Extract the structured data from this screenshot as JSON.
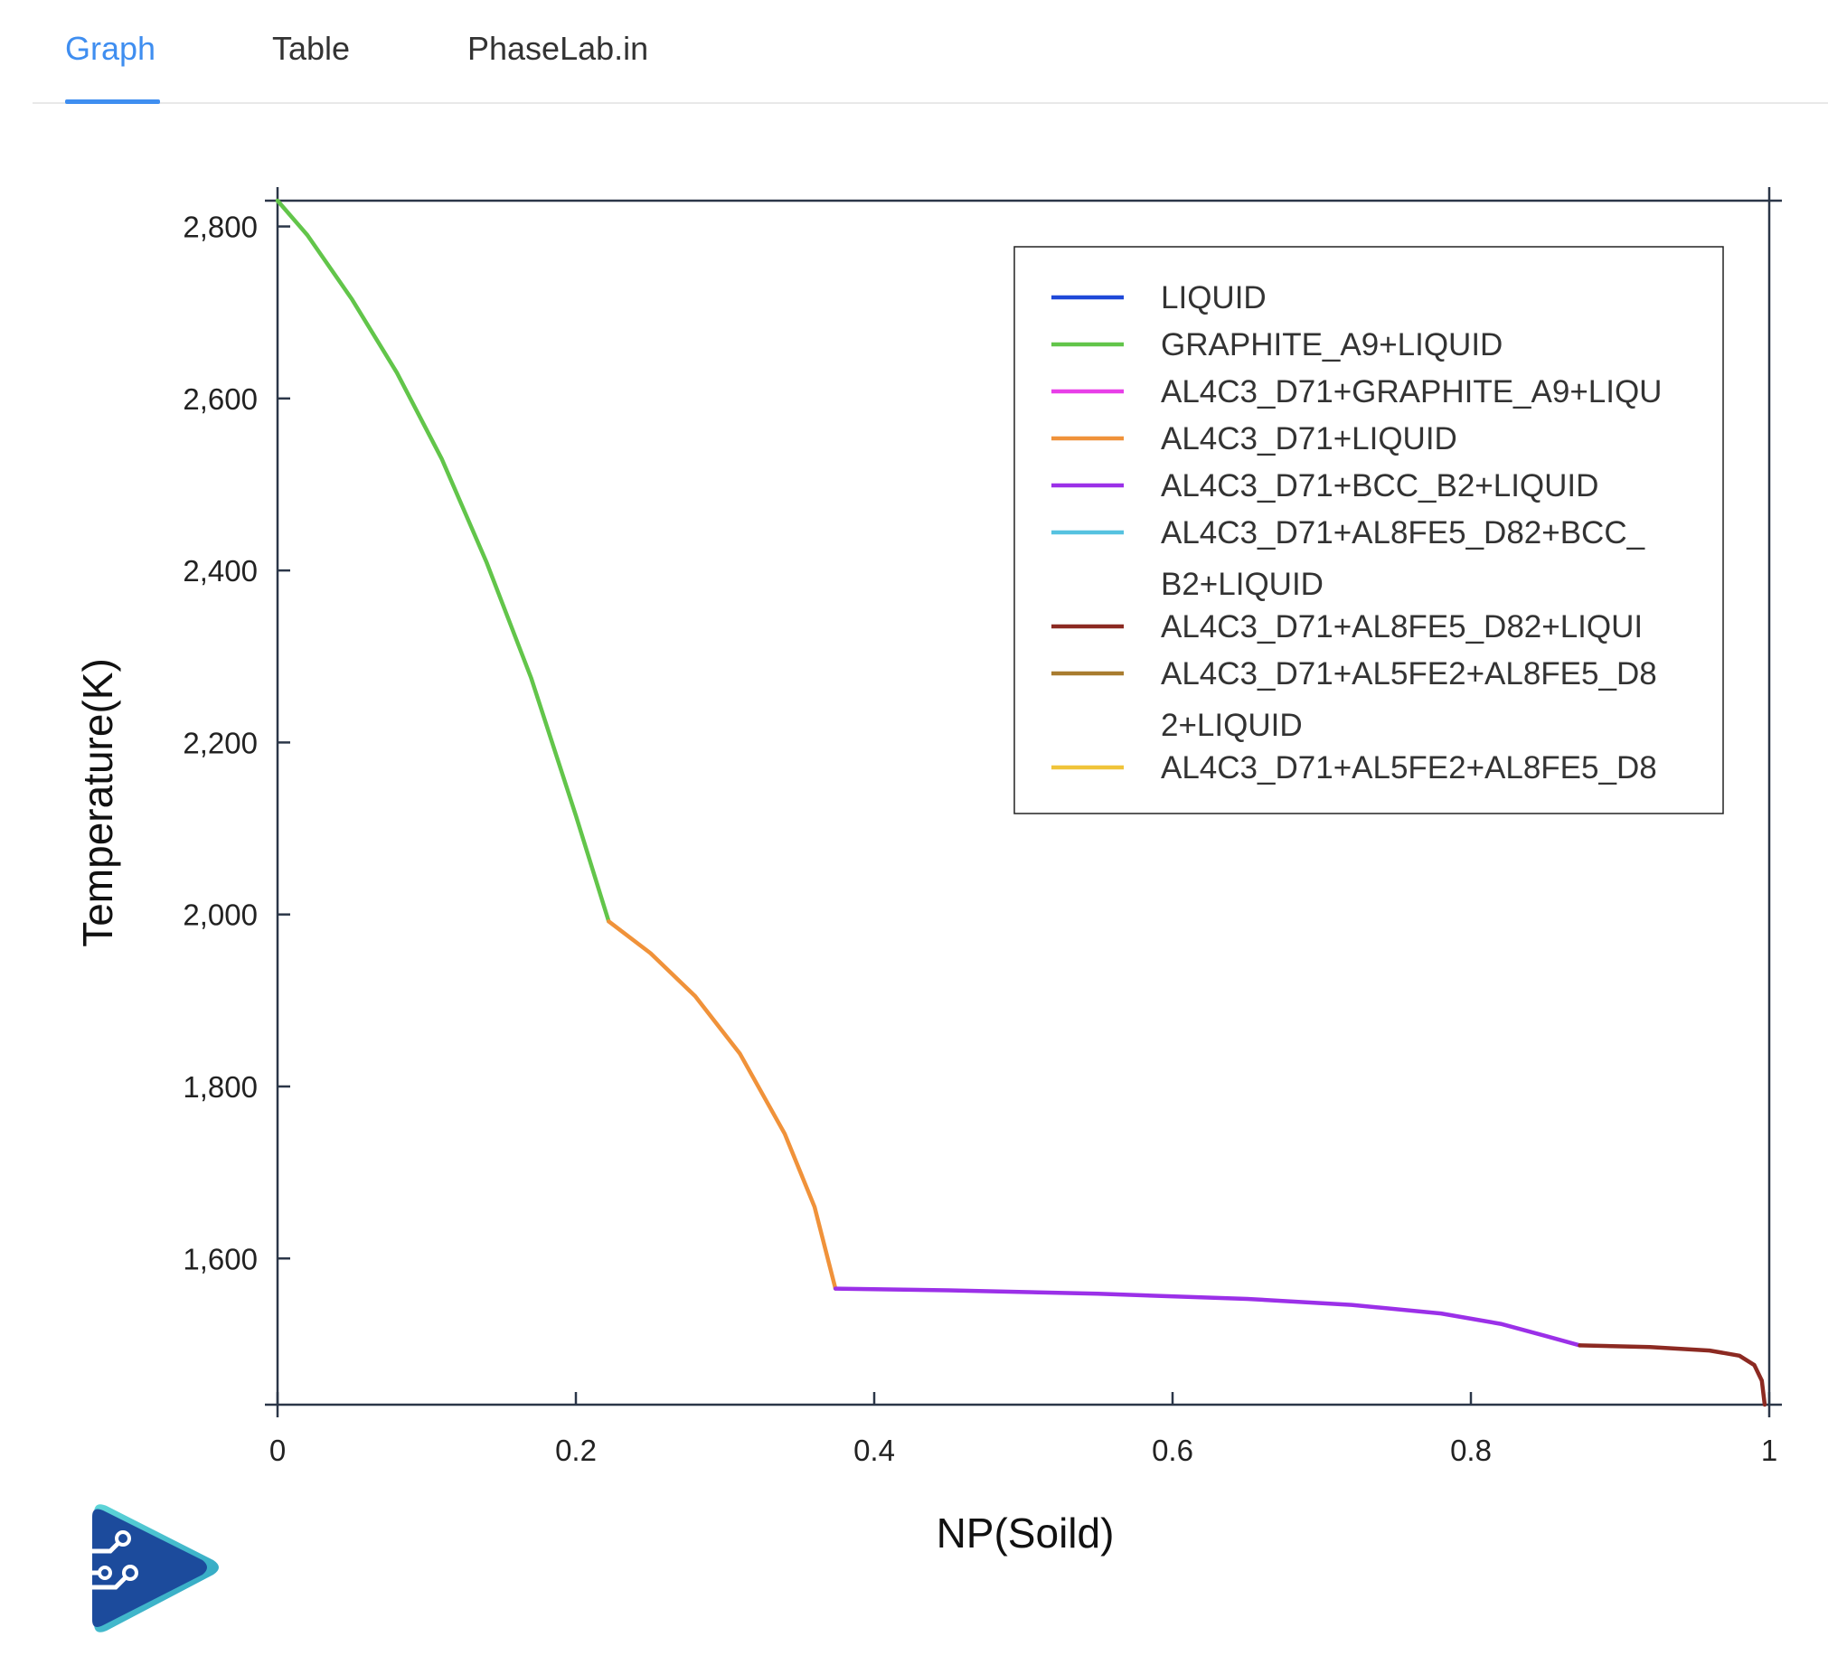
{
  "tabs": [
    {
      "label": "Graph",
      "active": true
    },
    {
      "label": "Table",
      "active": false
    },
    {
      "label": "PhaseLab.in",
      "active": false
    }
  ],
  "colors": {
    "accent": "#3f8ef0",
    "axis": "#2b3648"
  },
  "chart_data": {
    "type": "line",
    "title": "",
    "xlabel": "NP(Soild)",
    "ylabel": "Temperature(K)",
    "xlim": [
      0,
      1
    ],
    "ylim": [
      1430,
      2830
    ],
    "xticks": [
      0,
      0.2,
      0.4,
      0.6,
      0.8,
      1
    ],
    "xtick_labels": [
      "0",
      "0.2",
      "0.4",
      "0.6",
      "0.8",
      "1"
    ],
    "yticks": [
      1600,
      1800,
      2000,
      2200,
      2400,
      2600,
      2800
    ],
    "ytick_labels": [
      "1,600",
      "1,800",
      "2,000",
      "2,200",
      "2,400",
      "2,600",
      "2,800"
    ],
    "grid": false,
    "legend_position": "top-right",
    "series": [
      {
        "name": "LIQUID",
        "color": "#1f49d8",
        "x": [],
        "y": []
      },
      {
        "name": "GRAPHITE_A9+LIQUID",
        "color": "#62c54a",
        "x": [
          0,
          0.02,
          0.05,
          0.08,
          0.11,
          0.14,
          0.17,
          0.2,
          0.222
        ],
        "y": [
          2830,
          2790,
          2715,
          2630,
          2530,
          2410,
          2275,
          2115,
          1992
        ]
      },
      {
        "name": "AL4C3_D71+GRAPHITE_A9+LIQU",
        "color": "#e83fe8",
        "x": [],
        "y": []
      },
      {
        "name": "AL4C3_D71+LIQUID",
        "color": "#f0923a",
        "x": [
          0.222,
          0.25,
          0.28,
          0.31,
          0.34,
          0.36,
          0.374
        ],
        "y": [
          1992,
          1955,
          1905,
          1838,
          1745,
          1660,
          1565
        ]
      },
      {
        "name": "AL4C3_D71+BCC_B2+LIQUID",
        "color": "#9b30e8",
        "x": [
          0.374,
          0.45,
          0.55,
          0.65,
          0.72,
          0.78,
          0.82,
          0.85,
          0.873
        ],
        "y": [
          1565,
          1563,
          1559,
          1553,
          1546,
          1536,
          1524,
          1510,
          1499
        ]
      },
      {
        "name": "AL4C3_D71+AL8FE5_D82+BCC_B2+LIQUID",
        "color": "#56c2e0",
        "x": [],
        "y": []
      },
      {
        "name": "AL4C3_D71+AL8FE5_D82+LIQUI",
        "color": "#8c2a22",
        "x": [
          0.873,
          0.92,
          0.96,
          0.98,
          0.99,
          0.995,
          0.997
        ],
        "y": [
          1499,
          1497,
          1493,
          1487,
          1476,
          1458,
          1430
        ]
      },
      {
        "name": "AL4C3_D71+AL5FE2+AL8FE5_D82+LIQUID",
        "color": "#a87c2f",
        "x": [],
        "y": []
      },
      {
        "name": "AL4C3_D71+AL5FE2+AL8FE5_D8",
        "color": "#f0c43a",
        "x": [],
        "y": []
      }
    ],
    "legend_entries": [
      {
        "lines": [
          "LIQUID"
        ],
        "color": "#1f49d8"
      },
      {
        "lines": [
          "GRAPHITE_A9+LIQUID"
        ],
        "color": "#62c54a"
      },
      {
        "lines": [
          "AL4C3_D71+GRAPHITE_A9+LIQU"
        ],
        "color": "#e83fe8"
      },
      {
        "lines": [
          "AL4C3_D71+LIQUID"
        ],
        "color": "#f0923a"
      },
      {
        "lines": [
          "AL4C3_D71+BCC_B2+LIQUID"
        ],
        "color": "#9b30e8"
      },
      {
        "lines": [
          "AL4C3_D71+AL8FE5_D82+BCC_",
          "B2+LIQUID"
        ],
        "color": "#56c2e0"
      },
      {
        "lines": [
          "AL4C3_D71+AL8FE5_D82+LIQUI"
        ],
        "color": "#8c2a22"
      },
      {
        "lines": [
          "AL4C3_D71+AL5FE2+AL8FE5_D8",
          "2+LIQUID"
        ],
        "color": "#a87c2f"
      },
      {
        "lines": [
          "AL4C3_D71+AL5FE2+AL8FE5_D8"
        ],
        "color": "#f0c43a"
      }
    ]
  }
}
